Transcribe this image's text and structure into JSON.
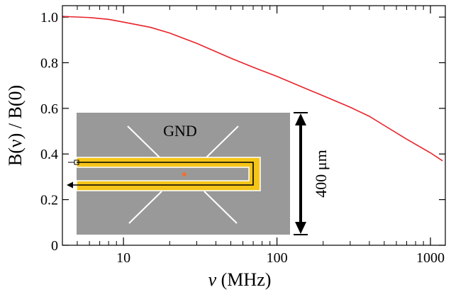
{
  "chart_data": {
    "type": "line",
    "x_scale": "log",
    "xlim": [
      4,
      1250
    ],
    "ylim": [
      0,
      1.05
    ],
    "xlabel_symbol": "ν",
    "xlabel_unit": " (MHz)",
    "ylabel": "B(ν) / B(0)",
    "x_major_ticks": [
      {
        "value": 10,
        "label": "10"
      },
      {
        "value": 100,
        "label": "100"
      },
      {
        "value": 1000,
        "label": "1000"
      }
    ],
    "y_ticks": [
      {
        "value": 0,
        "label": "0"
      },
      {
        "value": 0.2,
        "label": "0.2"
      },
      {
        "value": 0.4,
        "label": "0.4"
      },
      {
        "value": 0.6,
        "label": "0.6"
      },
      {
        "value": 0.8,
        "label": "0.8"
      },
      {
        "value": 1.0,
        "label": "1.0"
      }
    ],
    "grid": false,
    "series": [
      {
        "color": "#e8232a",
        "points": [
          [
            4,
            1.003
          ],
          [
            6,
            0.998
          ],
          [
            8,
            0.99
          ],
          [
            10,
            0.978
          ],
          [
            15,
            0.955
          ],
          [
            20,
            0.93
          ],
          [
            30,
            0.885
          ],
          [
            50,
            0.82
          ],
          [
            70,
            0.78
          ],
          [
            100,
            0.74
          ],
          [
            150,
            0.69
          ],
          [
            200,
            0.655
          ],
          [
            300,
            0.605
          ],
          [
            400,
            0.565
          ],
          [
            500,
            0.525
          ],
          [
            700,
            0.465
          ],
          [
            1000,
            0.405
          ],
          [
            1200,
            0.37
          ]
        ]
      }
    ],
    "inset": {
      "gnd_label": "GND",
      "dimension_label": "400 μm",
      "background_color": "#999999",
      "strip_color": "#f5c518",
      "marker_color": "#f07030"
    }
  }
}
